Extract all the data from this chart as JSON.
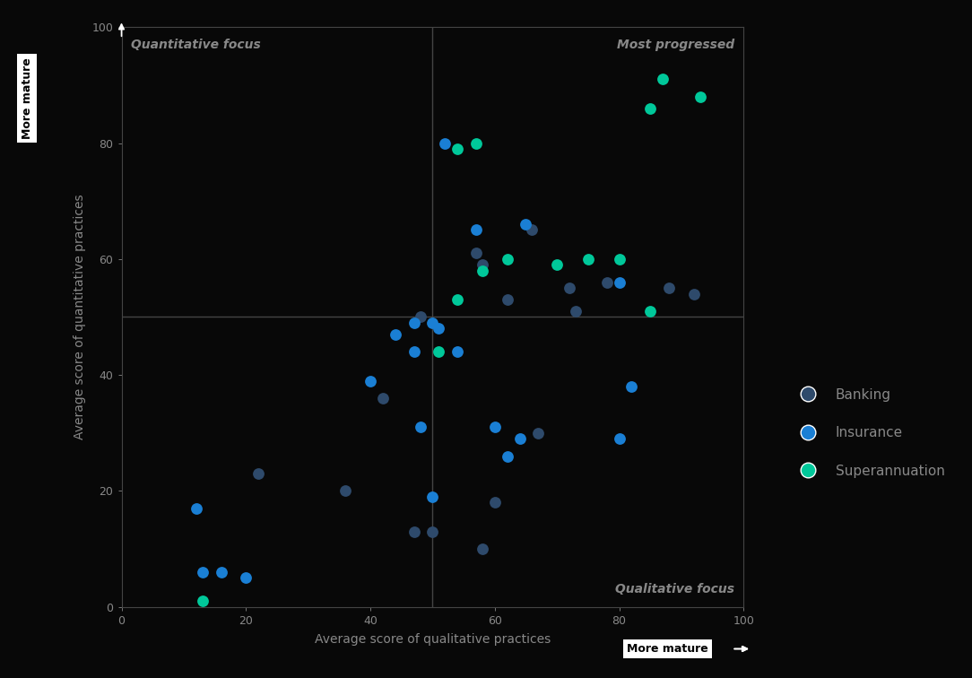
{
  "background_color": "#080808",
  "text_color": "#888888",
  "banking_color": "#2e4a6b",
  "insurance_color": "#1a7fd4",
  "superannuation_color": "#00c89a",
  "banking_points": [
    [
      42,
      36
    ],
    [
      48,
      50
    ],
    [
      22,
      23
    ],
    [
      36,
      20
    ],
    [
      47,
      13
    ],
    [
      50,
      13
    ],
    [
      58,
      59
    ],
    [
      57,
      61
    ],
    [
      66,
      65
    ],
    [
      62,
      53
    ],
    [
      72,
      55
    ],
    [
      78,
      56
    ],
    [
      88,
      55
    ],
    [
      92,
      54
    ],
    [
      67,
      30
    ],
    [
      60,
      18
    ],
    [
      58,
      10
    ],
    [
      73,
      51
    ]
  ],
  "insurance_points": [
    [
      12,
      17
    ],
    [
      13,
      6
    ],
    [
      16,
      6
    ],
    [
      20,
      5
    ],
    [
      40,
      39
    ],
    [
      44,
      47
    ],
    [
      47,
      49
    ],
    [
      47,
      44
    ],
    [
      48,
      31
    ],
    [
      50,
      49
    ],
    [
      50,
      19
    ],
    [
      51,
      48
    ],
    [
      54,
      44
    ],
    [
      57,
      65
    ],
    [
      60,
      31
    ],
    [
      62,
      26
    ],
    [
      64,
      29
    ],
    [
      80,
      29
    ],
    [
      82,
      38
    ],
    [
      80,
      56
    ],
    [
      52,
      80
    ],
    [
      65,
      66
    ]
  ],
  "superannuation_points": [
    [
      13,
      1
    ],
    [
      51,
      44
    ],
    [
      54,
      53
    ],
    [
      54,
      79
    ],
    [
      57,
      80
    ],
    [
      58,
      58
    ],
    [
      62,
      60
    ],
    [
      70,
      59
    ],
    [
      75,
      60
    ],
    [
      80,
      60
    ],
    [
      85,
      86
    ],
    [
      87,
      91
    ],
    [
      93,
      88
    ],
    [
      85,
      51
    ]
  ],
  "xlim": [
    0,
    100
  ],
  "ylim": [
    0,
    100
  ],
  "xticks": [
    0,
    20,
    40,
    60,
    80,
    100
  ],
  "yticks": [
    0,
    20,
    40,
    60,
    80,
    100
  ],
  "xlabel": "Average score of qualitative practices",
  "ylabel": "Average score of quantitative practices",
  "divider_x": 50,
  "divider_y": 50,
  "quadrant_top_left": "Quantitative focus",
  "quadrant_top_right": "Most progressed",
  "quadrant_bottom_right": "Qualitative focus",
  "more_mature_y": "More mature",
  "more_mature_x": "More mature",
  "legend_banking": "Banking",
  "legend_insurance": "Insurance",
  "legend_superannuation": "Superannuation",
  "marker_size": 85,
  "font_size_quadrant": 10,
  "font_size_axis_label": 10,
  "font_size_tick": 9,
  "font_size_legend": 11,
  "font_size_more_mature": 9
}
